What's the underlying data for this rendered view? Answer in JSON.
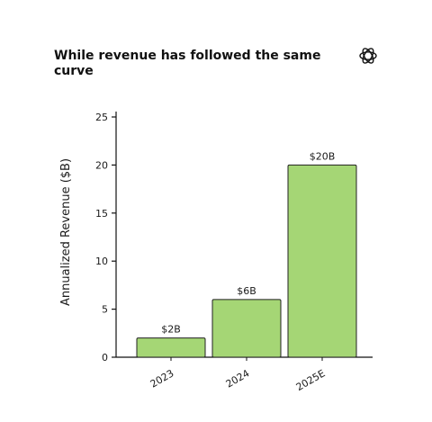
{
  "header": {
    "title": "While revenue has followed the same curve",
    "logo_icon": "openai-logo-icon"
  },
  "colors": {
    "bar_fill": "#a5d675",
    "bar_stroke": "#222222",
    "axis": "#111111"
  },
  "chart_data": {
    "type": "bar",
    "title": "While revenue has followed the same curve",
    "xlabel": "",
    "ylabel": "Annualized Revenue ($B)",
    "categories": [
      "2023",
      "2024",
      "2025E"
    ],
    "values": [
      2,
      6,
      20
    ],
    "data_labels": [
      "$2B",
      "$6B",
      "$20B"
    ],
    "ylim": [
      0,
      25
    ],
    "yticks": [
      0,
      5,
      10,
      15,
      20,
      25
    ],
    "grid": false,
    "legend": "none"
  }
}
